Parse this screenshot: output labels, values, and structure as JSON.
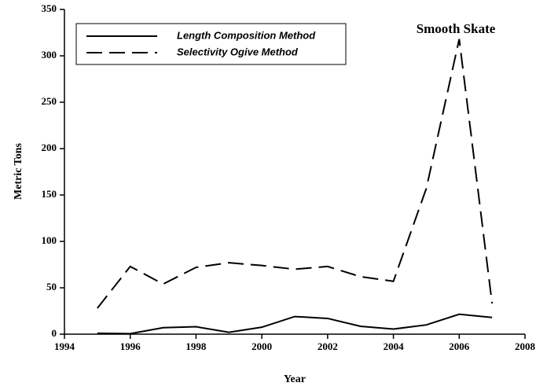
{
  "chart_data": {
    "type": "line",
    "annotation": "Smooth Skate",
    "x_label": "Year",
    "y_label": "Metric Tons",
    "x": [
      1995,
      1996,
      1997,
      1998,
      1999,
      2000,
      2001,
      2002,
      2003,
      2004,
      2005,
      2006,
      2007
    ],
    "series": [
      {
        "name": "Length Composition Method",
        "color": "#000000",
        "dash": "solid",
        "values": [
          1,
          0.5,
          7,
          8,
          2,
          7.5,
          19,
          17,
          8.5,
          5.5,
          10,
          21.5,
          18
        ]
      },
      {
        "name": "Selectivity Ogive Method",
        "color": "#000000",
        "dash": "dashed",
        "values": [
          28,
          73,
          54,
          72,
          77,
          74,
          70,
          73,
          62,
          57,
          157,
          318,
          33
        ]
      }
    ],
    "xlim": [
      1994,
      2008
    ],
    "xticks": [
      1994,
      1996,
      1998,
      2000,
      2002,
      2004,
      2006,
      2008
    ],
    "ylim": [
      0,
      350
    ],
    "yticks": [
      0,
      50,
      100,
      150,
      200,
      250,
      300,
      350
    ],
    "legend": "upper left",
    "grid": false
  }
}
